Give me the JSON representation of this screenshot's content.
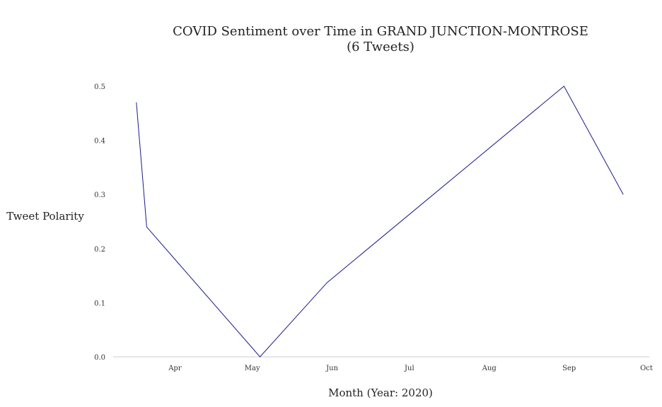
{
  "chart_data": {
    "type": "line",
    "title_line1": "COVID Sentiment over Time in GRAND JUNCTION-MONTROSE",
    "title_line2": "(6 Tweets)",
    "xlabel": "Month (Year: 2020)",
    "ylabel": "Tweet Polarity",
    "x_tick_labels": [
      "Apr",
      "May",
      "Jun",
      "Jul",
      "Aug",
      "Sep",
      "Oct"
    ],
    "x_tick_dates": [
      "2020-04-01",
      "2020-05-01",
      "2020-06-01",
      "2020-07-01",
      "2020-08-01",
      "2020-09-01",
      "2020-10-01"
    ],
    "y_tick_labels": [
      "0.0",
      "0.1",
      "0.2",
      "0.3",
      "0.4",
      "0.5"
    ],
    "y_ticks": [
      0,
      0.1,
      0.2,
      0.3,
      0.4,
      0.5
    ],
    "xlim": [
      "2020-03-08",
      "2020-10-01"
    ],
    "ylim": [
      0,
      0.5
    ],
    "grid": false,
    "series": [
      {
        "color": "#1a1a8c",
        "points": [
          {
            "x": "2020-03-17",
            "y": 0.47
          },
          {
            "x": "2020-03-21",
            "y": 0.24
          },
          {
            "x": "2020-05-04",
            "y": 0.0
          },
          {
            "x": "2020-05-30",
            "y": 0.137
          },
          {
            "x": "2020-08-30",
            "y": 0.5
          },
          {
            "x": "2020-09-22",
            "y": 0.3
          }
        ]
      }
    ],
    "colors": {
      "line": "#1a1a8c",
      "axis": "#cccccc",
      "text": "#222222"
    }
  }
}
